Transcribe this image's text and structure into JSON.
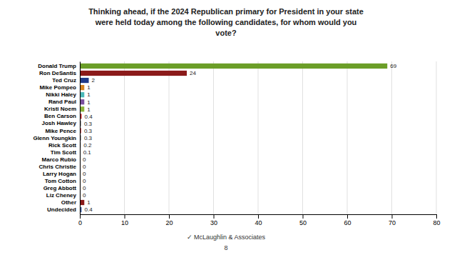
{
  "chart_data": {
    "type": "bar",
    "orientation": "horizontal",
    "title": "Thinking ahead, if the 2024 Republican primary for President in your state\nwere held today among the following candidates, for whom would you\nvote?",
    "categories": [
      "Donald Trump",
      "Ron DeSantis",
      "Ted Cruz",
      "Mike Pompeo",
      "Nikki Haley",
      "Rand Paul",
      "Kristi Noem",
      "Ben Carson",
      "Josh Hawley",
      "Mike Pence",
      "Glenn Youngkin",
      "Rick Scott",
      "Tim Scott",
      "Marco Rubio",
      "Chris Christie",
      "Larry Hogan",
      "Tom Cotton",
      "Greg Abbott",
      "Liz Cheney",
      "Other",
      "Undecided"
    ],
    "values": [
      69,
      24,
      2,
      1,
      1,
      1,
      1,
      0.4,
      0.3,
      0.3,
      0.3,
      0.2,
      0.1,
      0,
      0,
      0,
      0,
      0,
      0,
      1,
      0.4
    ],
    "colors": [
      "#6b9e28",
      "#8b1a1a",
      "#1e3a8a",
      "#d4821e",
      "#4ab8b8",
      "#7b4f9e",
      "#8db33a",
      "#cc3333",
      "#999999",
      "#cc4444",
      "#999999",
      "#888888",
      "#888888",
      "#888888",
      "#888888",
      "#888888",
      "#888888",
      "#888888",
      "#e8a090",
      "#8b1a1a",
      "#4466aa"
    ],
    "xlim": [
      0,
      80
    ],
    "xticks": [
      0,
      10,
      20,
      30,
      40,
      50,
      60,
      70,
      80
    ],
    "grid": true,
    "data_labels": true,
    "annotations": [
      "✓ McLaughlin & Associates",
      "8"
    ]
  }
}
